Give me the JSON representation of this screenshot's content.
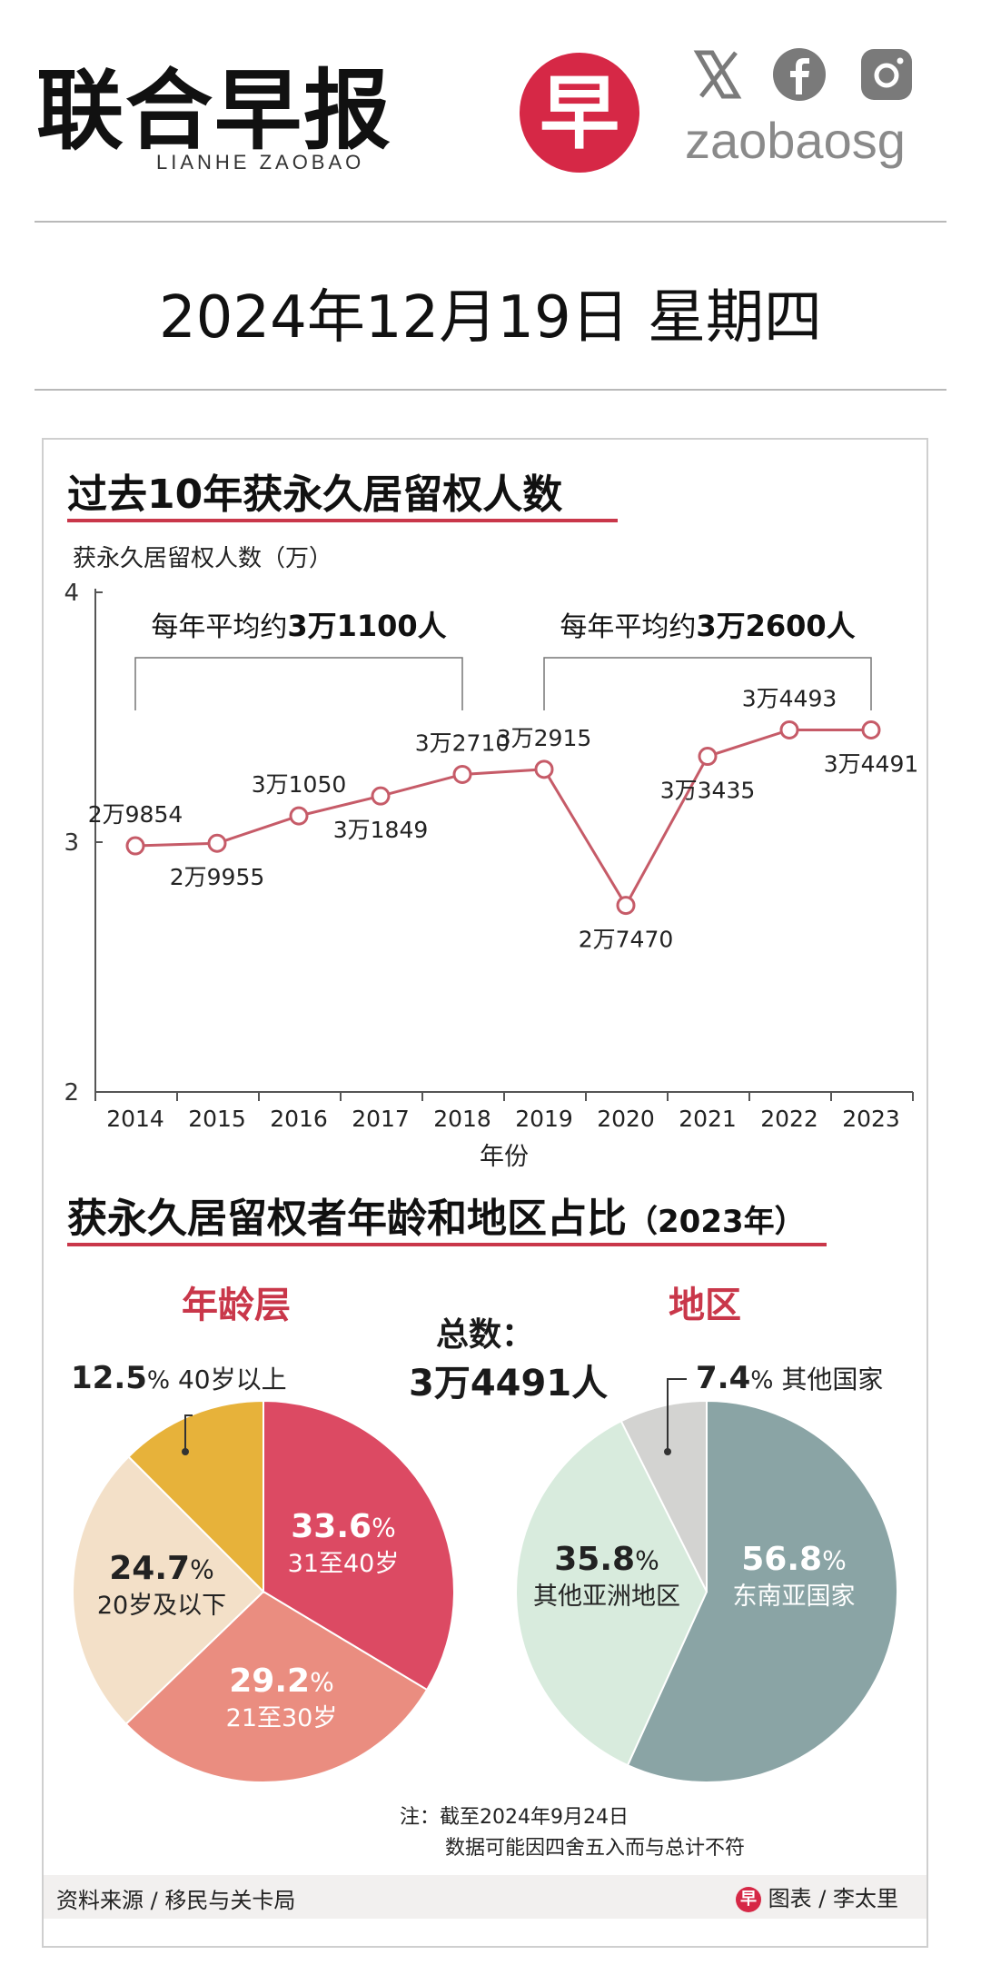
{
  "header": {
    "logo_text": "联合早报",
    "logo_sub": "LIANHE ZAOBAO",
    "badge_char": "早",
    "handle": "zaobaosg",
    "x_icon": "x-icon",
    "facebook_icon": "facebook-icon",
    "instagram_icon": "instagram-icon"
  },
  "date": "2024年12月19日  星期四",
  "colors": {
    "accent": "#c9374a",
    "line": "#c65b68",
    "age_1": "#dc4a63",
    "age_2": "#ea8d80",
    "age_3": "#f3e0c8",
    "age_4": "#e7b23a",
    "reg_1": "#8aa4a5",
    "reg_2": "#d8ebdd",
    "reg_3": "#d3d3d1"
  },
  "chart_data": [
    {
      "type": "line",
      "title": "过去10年获永久居留权人数",
      "ylabel": "获永久居留权人数（万）",
      "xlabel": "年份",
      "ylim": [
        2,
        4
      ],
      "yticks": [
        "2",
        "3",
        "4"
      ],
      "grid": false,
      "x": [
        "2014",
        "2015",
        "2016",
        "2017",
        "2018",
        "2019",
        "2020",
        "2021",
        "2022",
        "2023"
      ],
      "values": [
        29854,
        29955,
        31050,
        31849,
        32710,
        32915,
        27470,
        33435,
        34493,
        34491
      ],
      "data_labels": [
        "2万9854",
        "2万9955",
        "3万1050",
        "3万1849",
        "3万2710",
        "3万2915",
        "2万7470",
        "3万3435",
        "3万4493",
        "3万4491"
      ],
      "annotations": [
        {
          "prefix": "每年平均约",
          "bold": "3万1100人"
        },
        {
          "prefix": "每年平均约",
          "bold": "3万2600人"
        }
      ]
    },
    {
      "type": "pie",
      "title": "获永久居留权者年龄和地区占比",
      "title_suffix": "（2023年）",
      "subtitle": "年龄层",
      "slices": [
        {
          "label": "31至40岁",
          "pct": "33.6",
          "value": 33.6
        },
        {
          "label": "21至30岁",
          "pct": "29.2",
          "value": 29.2
        },
        {
          "label": "20岁及以下",
          "pct": "24.7",
          "value": 24.7
        },
        {
          "label": "40岁以上",
          "pct": "12.5",
          "value": 12.5
        }
      ]
    },
    {
      "type": "pie",
      "subtitle": "地区",
      "slices": [
        {
          "label": "东南亚国家",
          "pct": "56.8",
          "value": 56.8
        },
        {
          "label": "其他亚洲地区",
          "pct": "35.8",
          "value": 35.8
        },
        {
          "label": "其他国家",
          "pct": "7.4",
          "value": 7.4
        }
      ]
    }
  ],
  "total": {
    "label": "总数：",
    "value": "3万4491人"
  },
  "pct_sign": "%",
  "note": {
    "line1": "注：截至2024年9月24日",
    "line2": "数据可能因四舍五入而与总计不符"
  },
  "footer": {
    "source": "资料来源 / 移民与关卡局",
    "credit_badge": "早",
    "credit": "图表 / 李太里"
  }
}
